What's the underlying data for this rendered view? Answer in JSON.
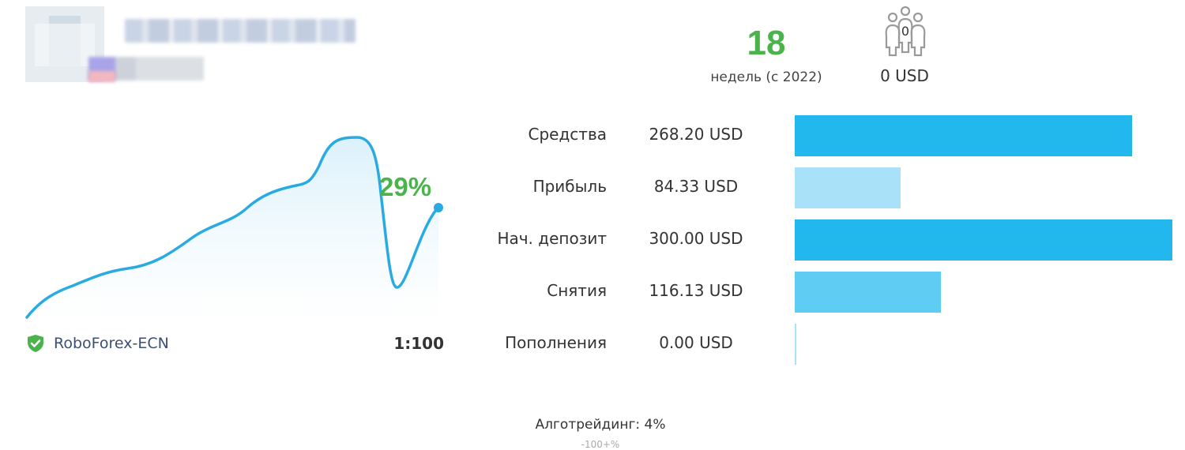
{
  "header": {
    "weeks_value": "18",
    "weeks_label": "недель (с 2022)",
    "subscribers_count": "0",
    "subscribers_funds": "0 USD"
  },
  "growth": {
    "percent_label": "29%",
    "broker": "RoboForex-ECN",
    "leverage": "1:100"
  },
  "stats": [
    {
      "label": "Средства",
      "value": "268.20 USD",
      "fraction": 0.894,
      "color": "#22b8ee"
    },
    {
      "label": "Прибыль",
      "value": "84.33 USD",
      "fraction": 0.281,
      "color": "#a9e1f9"
    },
    {
      "label": "Нач. депозит",
      "value": "300.00 USD",
      "fraction": 1.0,
      "color": "#22b8ee"
    },
    {
      "label": "Снятия",
      "value": "116.13 USD",
      "fraction": 0.387,
      "color": "#5fcdf3"
    },
    {
      "label": "Пополнения",
      "value": "0.00 USD",
      "fraction": 0.0,
      "color": "#a9e1f9"
    }
  ],
  "algo_trading": "Алготрейдинг: 4%",
  "footer_note": "-100+%",
  "colors": {
    "accent_green": "#4bb34b",
    "line_blue": "#29abe2"
  },
  "icons": {
    "subscribers": "people-group-icon",
    "verified": "shield-check-icon"
  }
}
